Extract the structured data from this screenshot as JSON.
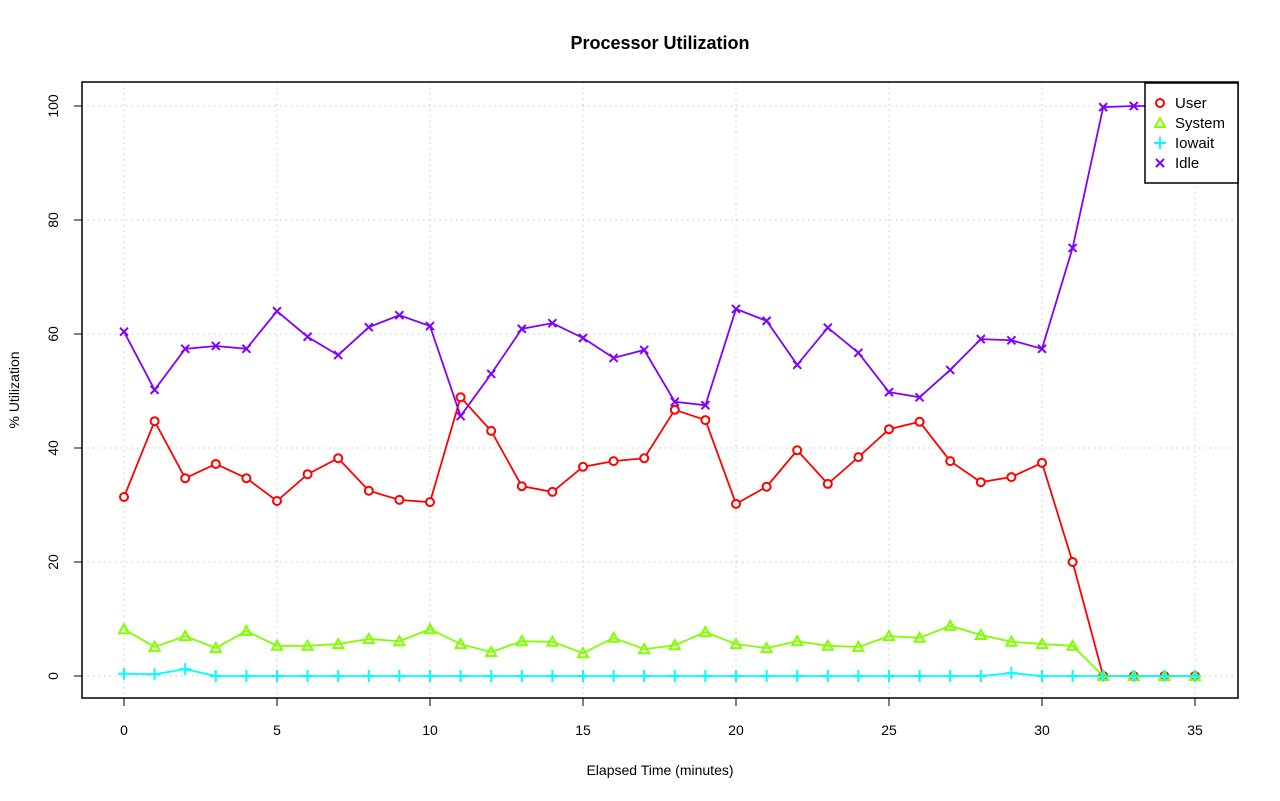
{
  "chart_data": {
    "type": "line",
    "title": "Processor Utilization",
    "xlabel": "Elapsed Time (minutes)",
    "ylabel": "% Utilization",
    "xlim": [
      0,
      35
    ],
    "ylim": [
      0,
      100
    ],
    "xticks": [
      0,
      5,
      10,
      15,
      20,
      25,
      30,
      35
    ],
    "yticks": [
      0,
      20,
      40,
      60,
      80,
      100
    ],
    "grid": true,
    "legend_position": "top-right",
    "x": [
      0,
      1,
      2,
      3,
      4,
      5,
      6,
      7,
      8,
      9,
      10,
      11,
      12,
      13,
      14,
      15,
      16,
      17,
      18,
      19,
      20,
      21,
      22,
      23,
      24,
      25,
      26,
      27,
      28,
      29,
      30,
      31,
      32,
      33,
      34,
      35
    ],
    "series": [
      {
        "name": "User",
        "color": "#ff0000",
        "marker": "circle",
        "values": [
          31.4,
          44.7,
          34.7,
          37.2,
          34.7,
          30.7,
          35.4,
          38.2,
          32.5,
          30.9,
          30.5,
          48.9,
          43.0,
          33.3,
          32.3,
          36.7,
          37.7,
          38.2,
          46.7,
          44.9,
          30.2,
          33.2,
          39.6,
          33.7,
          38.4,
          43.3,
          44.6,
          37.7,
          34.0,
          34.9,
          37.4,
          20.0,
          0,
          0,
          0,
          0
        ]
      },
      {
        "name": "System",
        "color": "#80ff00",
        "marker": "triangle",
        "values": [
          8.2,
          5.1,
          7.0,
          4.9,
          7.9,
          5.3,
          5.3,
          5.6,
          6.5,
          6.1,
          8.2,
          5.6,
          4.2,
          6.1,
          6.0,
          4.0,
          6.7,
          4.7,
          5.4,
          7.7,
          5.6,
          4.9,
          6.1,
          5.3,
          5.1,
          7.0,
          6.7,
          8.8,
          7.2,
          6.0,
          5.6,
          5.3,
          0,
          0,
          0,
          0
        ]
      },
      {
        "name": "Iowait",
        "color": "#00ffff",
        "marker": "plus",
        "values": [
          0.4,
          0.3,
          1.2,
          0,
          0,
          0,
          0,
          0,
          0,
          0,
          0,
          0,
          0,
          0,
          0,
          0,
          0,
          0,
          0,
          0,
          0,
          0,
          0,
          0,
          0,
          0,
          0,
          0,
          0,
          0.5,
          0,
          0,
          0,
          0,
          0,
          0
        ]
      },
      {
        "name": "Idle",
        "color": "#8000ff",
        "marker": "cross",
        "values": [
          60.4,
          50.2,
          57.4,
          57.9,
          57.4,
          64.0,
          59.5,
          56.3,
          61.2,
          63.3,
          61.4,
          45.6,
          53.0,
          60.9,
          61.9,
          59.3,
          55.8,
          57.2,
          48.1,
          47.5,
          64.4,
          62.3,
          54.6,
          61.1,
          56.7,
          49.8,
          48.9,
          53.7,
          59.1,
          58.9,
          57.4,
          75.1,
          99.8,
          100,
          100,
          100
        ]
      }
    ]
  }
}
